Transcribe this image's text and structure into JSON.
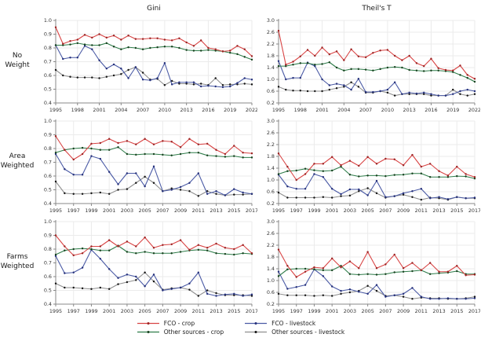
{
  "figure": {
    "column_titles": [
      "Gini",
      "Theil's T"
    ],
    "row_labels": [
      "No Weight",
      "Area Weighted",
      "Farms Weighted"
    ]
  },
  "legend": {
    "entries": [
      {
        "label": "FCO - crop",
        "line_color": "#d84444",
        "marker_color": "#9c2424"
      },
      {
        "label": "FCO - livestock",
        "line_color": "#4a5aa5",
        "marker_color": "#25307a"
      },
      {
        "label": "Other sources - crop",
        "line_color": "#2f7d4a",
        "marker_color": "#17421f"
      },
      {
        "label": "Other sources - livestock",
        "line_color": "#8f8f8f",
        "marker_color": "#141414"
      }
    ]
  },
  "chart_data": [
    {
      "type": "line",
      "row": "No Weight",
      "col": "Gini",
      "x": [
        1995,
        1996,
        1997,
        1998,
        1999,
        2000,
        2001,
        2002,
        2003,
        2004,
        2005,
        2006,
        2007,
        2008,
        2009,
        2010,
        2011,
        2012,
        2013,
        2014,
        2015,
        2016,
        2017,
        2018,
        2019,
        2020,
        2021,
        2022
      ],
      "xticks": [
        1995,
        1998,
        2001,
        2004,
        2007,
        2010,
        2013,
        2016,
        2019,
        2022
      ],
      "ylim": [
        0.4,
        1.0
      ],
      "yticks": [
        0.4,
        0.5,
        0.6,
        0.7,
        0.8,
        0.9,
        1.0
      ],
      "series": [
        {
          "name": "FCO - crop",
          "values": [
            0.95,
            0.83,
            0.85,
            0.86,
            0.895,
            0.875,
            0.9,
            0.875,
            0.89,
            0.86,
            0.89,
            0.865,
            0.865,
            0.87,
            0.87,
            0.86,
            0.855,
            0.87,
            0.84,
            0.815,
            0.855,
            0.8,
            0.79,
            0.775,
            0.78,
            0.815,
            0.79,
            0.74
          ]
        },
        {
          "name": "Other sources - crop",
          "values": [
            0.82,
            0.82,
            0.825,
            0.835,
            0.825,
            0.82,
            0.82,
            0.835,
            0.81,
            0.79,
            0.805,
            0.8,
            0.79,
            0.8,
            0.805,
            0.81,
            0.81,
            0.8,
            0.785,
            0.78,
            0.78,
            0.785,
            0.78,
            0.775,
            0.765,
            0.755,
            0.735,
            0.715
          ]
        },
        {
          "name": "FCO - livestock",
          "values": [
            0.82,
            0.72,
            0.73,
            0.73,
            0.815,
            0.79,
            0.71,
            0.65,
            0.68,
            0.65,
            0.58,
            0.66,
            0.57,
            0.565,
            0.58,
            0.69,
            0.535,
            0.55,
            0.55,
            0.55,
            0.52,
            0.525,
            0.52,
            0.515,
            0.52,
            0.545,
            0.58,
            0.57
          ]
        },
        {
          "name": "Other sources - livestock",
          "values": [
            0.64,
            0.6,
            0.59,
            0.585,
            0.585,
            0.585,
            0.58,
            0.59,
            0.6,
            0.61,
            0.64,
            0.66,
            0.62,
            0.57,
            0.575,
            0.53,
            0.56,
            0.54,
            0.54,
            0.535,
            0.54,
            0.53,
            0.58,
            0.53,
            0.535,
            0.535,
            0.54,
            0.535
          ]
        }
      ]
    },
    {
      "type": "line",
      "row": "No Weight",
      "col": "Theil's T",
      "x": [
        1995,
        1996,
        1997,
        1998,
        1999,
        2000,
        2001,
        2002,
        2003,
        2004,
        2005,
        2006,
        2007,
        2008,
        2009,
        2010,
        2011,
        2012,
        2013,
        2014,
        2015,
        2016,
        2017,
        2018,
        2019,
        2020,
        2021,
        2022
      ],
      "xticks": [
        1995,
        1998,
        2001,
        2004,
        2007,
        2010,
        2013,
        2016,
        2019,
        2022
      ],
      "ylim": [
        0.2,
        3.0
      ],
      "yticks": [
        0.2,
        0.6,
        1.0,
        1.4,
        1.8,
        2.2,
        2.6,
        3.0
      ],
      "series": [
        {
          "name": "FCO - crop",
          "values": [
            2.65,
            1.5,
            1.6,
            1.78,
            2.0,
            1.8,
            2.08,
            1.85,
            1.95,
            1.65,
            2.02,
            1.78,
            1.75,
            1.9,
            1.98,
            2.0,
            1.8,
            1.65,
            1.8,
            1.55,
            1.45,
            1.7,
            1.38,
            1.32,
            1.3,
            1.47,
            1.15,
            1.02
          ]
        },
        {
          "name": "Other sources - crop",
          "values": [
            1.45,
            1.45,
            1.5,
            1.55,
            1.55,
            1.5,
            1.52,
            1.58,
            1.4,
            1.3,
            1.35,
            1.35,
            1.33,
            1.3,
            1.35,
            1.4,
            1.42,
            1.4,
            1.32,
            1.3,
            1.28,
            1.3,
            1.3,
            1.28,
            1.25,
            1.15,
            1.05,
            0.92
          ]
        },
        {
          "name": "FCO - livestock",
          "values": [
            1.62,
            1.0,
            1.05,
            1.05,
            1.57,
            1.45,
            1.0,
            0.8,
            0.85,
            0.8,
            0.65,
            1.02,
            0.57,
            0.57,
            0.6,
            0.65,
            0.9,
            0.5,
            0.55,
            0.52,
            0.55,
            0.5,
            0.45,
            0.45,
            0.5,
            0.6,
            0.65,
            0.6
          ]
        },
        {
          "name": "Other sources - livestock",
          "values": [
            0.75,
            0.65,
            0.62,
            0.62,
            0.6,
            0.6,
            0.6,
            0.65,
            0.7,
            0.75,
            0.9,
            0.75,
            0.55,
            0.55,
            0.6,
            0.55,
            0.45,
            0.5,
            0.5,
            0.5,
            0.5,
            0.45,
            0.45,
            0.45,
            0.65,
            0.5,
            0.45,
            0.5
          ]
        }
      ]
    },
    {
      "type": "line",
      "row": "Area Weighted",
      "col": "Gini",
      "x": [
        1995,
        1996,
        1997,
        1998,
        1999,
        2000,
        2001,
        2002,
        2003,
        2004,
        2005,
        2006,
        2007,
        2008,
        2009,
        2010,
        2011,
        2012,
        2013,
        2014,
        2015,
        2016,
        2017
      ],
      "xticks": [
        1995,
        1997,
        1999,
        2001,
        2003,
        2005,
        2007,
        2009,
        2011,
        2013,
        2015,
        2017
      ],
      "ylim": [
        0.4,
        1.0
      ],
      "yticks": [
        0.4,
        0.5,
        0.6,
        0.7,
        0.8,
        0.9,
        1.0
      ],
      "series": [
        {
          "name": "FCO - crop",
          "values": [
            0.89,
            0.79,
            0.72,
            0.76,
            0.835,
            0.84,
            0.87,
            0.84,
            0.855,
            0.83,
            0.87,
            0.83,
            0.855,
            0.85,
            0.81,
            0.87,
            0.83,
            0.835,
            0.79,
            0.76,
            0.82,
            0.77,
            0.765
          ]
        },
        {
          "name": "Other sources - crop",
          "values": [
            0.77,
            0.79,
            0.8,
            0.805,
            0.8,
            0.79,
            0.79,
            0.81,
            0.76,
            0.755,
            0.76,
            0.76,
            0.755,
            0.75,
            0.76,
            0.77,
            0.77,
            0.75,
            0.745,
            0.74,
            0.745,
            0.735,
            0.735
          ]
        },
        {
          "name": "FCO - livestock",
          "values": [
            0.76,
            0.65,
            0.61,
            0.61,
            0.745,
            0.725,
            0.63,
            0.54,
            0.62,
            0.62,
            0.525,
            0.67,
            0.49,
            0.5,
            0.52,
            0.55,
            0.62,
            0.47,
            0.49,
            0.46,
            0.505,
            0.48,
            0.47
          ]
        },
        {
          "name": "Other sources - livestock",
          "values": [
            0.56,
            0.475,
            0.47,
            0.47,
            0.475,
            0.48,
            0.47,
            0.5,
            0.505,
            0.55,
            0.595,
            0.55,
            0.49,
            0.51,
            0.5,
            0.49,
            0.455,
            0.49,
            0.47,
            0.46,
            0.465,
            0.465,
            0.47
          ]
        }
      ]
    },
    {
      "type": "line",
      "row": "Area Weighted",
      "col": "Theil's T",
      "x": [
        1995,
        1996,
        1997,
        1998,
        1999,
        2000,
        2001,
        2002,
        2003,
        2004,
        2005,
        2006,
        2007,
        2008,
        2009,
        2010,
        2011,
        2012,
        2013,
        2014,
        2015,
        2016,
        2017
      ],
      "xticks": [
        1995,
        1997,
        1999,
        2001,
        2003,
        2005,
        2007,
        2009,
        2011,
        2013,
        2015,
        2017
      ],
      "ylim": [
        0.2,
        3.0
      ],
      "yticks": [
        0.2,
        0.6,
        1.0,
        1.4,
        1.8,
        2.2,
        2.6,
        3.0
      ],
      "series": [
        {
          "name": "FCO - crop",
          "values": [
            1.9,
            1.45,
            1.0,
            1.2,
            1.55,
            1.55,
            1.78,
            1.5,
            1.65,
            1.48,
            1.78,
            1.55,
            1.72,
            1.7,
            1.5,
            1.85,
            1.45,
            1.55,
            1.3,
            1.15,
            1.45,
            1.2,
            1.1
          ]
        },
        {
          "name": "Other sources - crop",
          "values": [
            1.2,
            1.3,
            1.32,
            1.38,
            1.33,
            1.3,
            1.32,
            1.45,
            1.18,
            1.12,
            1.15,
            1.15,
            1.13,
            1.17,
            1.18,
            1.22,
            1.22,
            1.1,
            1.1,
            1.1,
            1.13,
            1.12,
            1.05
          ]
        },
        {
          "name": "FCO - livestock",
          "values": [
            1.18,
            0.78,
            0.7,
            0.7,
            1.2,
            1.1,
            0.7,
            0.52,
            0.68,
            0.68,
            0.48,
            0.97,
            0.42,
            0.45,
            0.55,
            0.62,
            0.7,
            0.38,
            0.42,
            0.35,
            0.42,
            0.38,
            0.4
          ]
        },
        {
          "name": "Other sources - livestock",
          "values": [
            0.57,
            0.4,
            0.4,
            0.4,
            0.4,
            0.42,
            0.4,
            0.45,
            0.47,
            0.62,
            0.72,
            0.55,
            0.4,
            0.45,
            0.5,
            0.42,
            0.33,
            0.4,
            0.38,
            0.33,
            0.42,
            0.38,
            0.38
          ]
        }
      ]
    },
    {
      "type": "line",
      "row": "Farms Weighted",
      "col": "Gini",
      "x": [
        1995,
        1996,
        1997,
        1998,
        1999,
        2000,
        2001,
        2002,
        2003,
        2004,
        2005,
        2006,
        2007,
        2008,
        2009,
        2010,
        2011,
        2012,
        2013,
        2014,
        2015,
        2016,
        2017
      ],
      "xticks": [
        1995,
        1997,
        1999,
        2001,
        2003,
        2005,
        2007,
        2009,
        2011,
        2013,
        2015,
        2017
      ],
      "ylim": [
        0.4,
        1.0
      ],
      "yticks": [
        0.4,
        0.5,
        0.6,
        0.7,
        0.8,
        0.9,
        1.0
      ],
      "series": [
        {
          "name": "FCO - crop",
          "values": [
            0.9,
            0.82,
            0.755,
            0.77,
            0.82,
            0.82,
            0.865,
            0.82,
            0.855,
            0.82,
            0.885,
            0.81,
            0.83,
            0.835,
            0.865,
            0.795,
            0.83,
            0.81,
            0.84,
            0.81,
            0.8,
            0.83,
            0.77
          ]
        },
        {
          "name": "Other sources - crop",
          "values": [
            0.76,
            0.79,
            0.8,
            0.805,
            0.8,
            0.79,
            0.79,
            0.825,
            0.78,
            0.77,
            0.78,
            0.77,
            0.77,
            0.77,
            0.78,
            0.79,
            0.795,
            0.79,
            0.77,
            0.765,
            0.76,
            0.77,
            0.765
          ]
        },
        {
          "name": "FCO - livestock",
          "values": [
            0.75,
            0.625,
            0.63,
            0.665,
            0.795,
            0.73,
            0.655,
            0.59,
            0.615,
            0.6,
            0.53,
            0.615,
            0.5,
            0.51,
            0.52,
            0.55,
            0.63,
            0.475,
            0.46,
            0.47,
            0.475,
            0.46,
            0.47
          ]
        },
        {
          "name": "Other sources - livestock",
          "values": [
            0.55,
            0.52,
            0.52,
            0.515,
            0.51,
            0.52,
            0.51,
            0.545,
            0.56,
            0.575,
            0.63,
            0.565,
            0.505,
            0.515,
            0.52,
            0.505,
            0.46,
            0.5,
            0.48,
            0.465,
            0.465,
            0.465,
            0.46
          ]
        }
      ]
    },
    {
      "type": "line",
      "row": "Farms Weighted",
      "col": "Theil's T",
      "x": [
        1995,
        1996,
        1997,
        1998,
        1999,
        2000,
        2001,
        2002,
        2003,
        2004,
        2005,
        2006,
        2007,
        2008,
        2009,
        2010,
        2011,
        2012,
        2013,
        2014,
        2015,
        2016,
        2017
      ],
      "xticks": [
        1995,
        1997,
        1999,
        2001,
        2003,
        2005,
        2007,
        2009,
        2011,
        2013,
        2015,
        2017
      ],
      "ylim": [
        0.2,
        3.0
      ],
      "yticks": [
        0.2,
        0.6,
        1.0,
        1.4,
        1.8,
        2.2,
        2.6,
        3.0
      ],
      "series": [
        {
          "name": "FCO - crop",
          "values": [
            2.05,
            1.5,
            1.12,
            1.3,
            1.45,
            1.42,
            1.75,
            1.45,
            1.65,
            1.42,
            1.97,
            1.42,
            1.55,
            1.88,
            1.42,
            1.6,
            1.35,
            1.6,
            1.3,
            1.3,
            1.5,
            1.18,
            1.2
          ]
        },
        {
          "name": "Other sources - crop",
          "values": [
            1.15,
            1.38,
            1.4,
            1.4,
            1.38,
            1.35,
            1.35,
            1.5,
            1.22,
            1.2,
            1.22,
            1.2,
            1.22,
            1.28,
            1.3,
            1.32,
            1.35,
            1.22,
            1.25,
            1.27,
            1.32,
            1.22,
            1.22
          ]
        },
        {
          "name": "FCO - livestock",
          "values": [
            1.3,
            0.72,
            0.78,
            0.85,
            1.38,
            1.15,
            0.8,
            0.65,
            0.7,
            0.62,
            0.55,
            0.85,
            0.45,
            0.5,
            0.55,
            0.75,
            0.45,
            0.38,
            0.38,
            0.4,
            0.38,
            0.38,
            0.4
          ]
        },
        {
          "name": "Other sources - livestock",
          "values": [
            0.55,
            0.5,
            0.5,
            0.5,
            0.48,
            0.5,
            0.48,
            0.55,
            0.6,
            0.65,
            0.82,
            0.65,
            0.48,
            0.5,
            0.45,
            0.38,
            0.42,
            0.4,
            0.4,
            0.38,
            0.38,
            0.4,
            0.45
          ]
        }
      ]
    }
  ]
}
